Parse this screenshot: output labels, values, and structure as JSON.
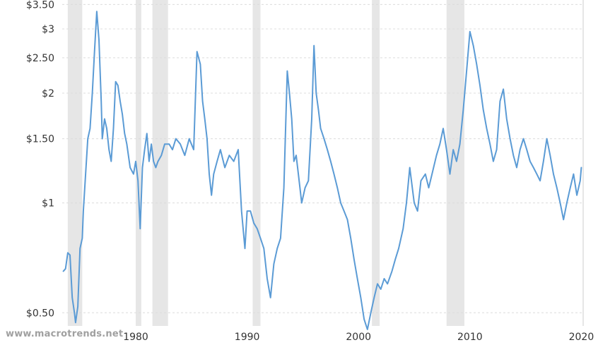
{
  "watermark": "www.macrotrends.net",
  "colors": {
    "line": "#5b9bd5",
    "grid": "#dcdcdc",
    "recession": "#e6e6e6",
    "text": "#333333"
  },
  "chart_data": {
    "type": "line",
    "title": "",
    "xlabel": "",
    "ylabel": "",
    "yscale": "log",
    "ylim": [
      0.46,
      3.6
    ],
    "xlim": [
      1973.4,
      2020.1
    ],
    "grid": true,
    "y_ticks": [
      {
        "value": 3.5,
        "label": "$3.50"
      },
      {
        "value": 3.0,
        "label": "$3"
      },
      {
        "value": 2.5,
        "label": "$2.50"
      },
      {
        "value": 2.0,
        "label": "$2"
      },
      {
        "value": 1.5,
        "label": "$1.50"
      },
      {
        "value": 1.0,
        "label": "$1"
      },
      {
        "value": 0.5,
        "label": "$0.50"
      }
    ],
    "x_ticks": [
      {
        "value": 1980,
        "label": "1980"
      },
      {
        "value": 1990,
        "label": "1990"
      },
      {
        "value": 2000,
        "label": "2000"
      },
      {
        "value": 2010,
        "label": "2010"
      },
      {
        "value": 2020,
        "label": "2020"
      }
    ],
    "recessions": [
      [
        1973.9,
        1975.2
      ],
      [
        1980.0,
        1980.5
      ],
      [
        1981.5,
        1982.9
      ],
      [
        1990.5,
        1991.2
      ],
      [
        2001.2,
        2001.9
      ],
      [
        2007.9,
        2009.5
      ],
      [
        2020.1,
        2020.4
      ]
    ],
    "series": [
      {
        "x": [
          1973.5,
          1973.7,
          1973.9,
          1974.1,
          1974.3,
          1974.5,
          1974.6,
          1974.8,
          1975.0,
          1975.2,
          1975.3,
          1975.5,
          1975.7,
          1975.9,
          1976.1,
          1976.3,
          1976.5,
          1976.7,
          1976.9,
          1977.0,
          1977.2,
          1977.4,
          1977.6,
          1977.8,
          1978.0,
          1978.2,
          1978.4,
          1978.6,
          1978.8,
          1979.0,
          1979.2,
          1979.5,
          1979.8,
          1980.0,
          1980.2,
          1980.4,
          1980.6,
          1980.8,
          1981.0,
          1981.2,
          1981.4,
          1981.6,
          1981.8,
          1982.0,
          1982.3,
          1982.6,
          1983.0,
          1983.3,
          1983.6,
          1984.0,
          1984.4,
          1984.8,
          1985.2,
          1985.5,
          1985.8,
          1986.0,
          1986.2,
          1986.4,
          1986.6,
          1986.8,
          1987.0,
          1987.3,
          1987.6,
          1988.0,
          1988.4,
          1988.8,
          1989.2,
          1989.5,
          1989.8,
          1990.0,
          1990.3,
          1990.6,
          1990.9,
          1991.2,
          1991.5,
          1991.8,
          1992.1,
          1992.4,
          1992.7,
          1993.0,
          1993.3,
          1993.6,
          1993.8,
          1994.0,
          1994.2,
          1994.4,
          1994.6,
          1994.9,
          1995.2,
          1995.5,
          1995.8,
          1996.0,
          1996.2,
          1996.4,
          1996.6,
          1996.9,
          1997.2,
          1997.5,
          1997.8,
          1998.1,
          1998.4,
          1998.7,
          1999.0,
          1999.3,
          1999.6,
          1999.9,
          2000.2,
          2000.5,
          2000.8,
          2001.1,
          2001.4,
          2001.7,
          2002.0,
          2002.3,
          2002.6,
          2003.0,
          2003.3,
          2003.6,
          2004.0,
          2004.3,
          2004.6,
          2005.0,
          2005.3,
          2005.6,
          2006.0,
          2006.3,
          2006.6,
          2007.0,
          2007.3,
          2007.6,
          2007.9,
          2008.2,
          2008.5,
          2008.8,
          2009.1,
          2009.4,
          2009.7,
          2010.0,
          2010.3,
          2010.6,
          2010.9,
          2011.2,
          2011.5,
          2011.8,
          2012.1,
          2012.4,
          2012.7,
          2013.0,
          2013.3,
          2013.6,
          2013.9,
          2014.2,
          2014.5,
          2014.8,
          2015.1,
          2015.4,
          2015.7,
          2016.0,
          2016.3,
          2016.6,
          2016.9,
          2017.2,
          2017.5,
          2017.8,
          2018.1,
          2018.4,
          2018.7,
          2019.0,
          2019.3,
          2019.6,
          2019.9,
          2020.0
        ],
        "values": [
          0.65,
          0.66,
          0.73,
          0.72,
          0.55,
          0.5,
          0.47,
          0.52,
          0.75,
          0.8,
          0.95,
          1.2,
          1.5,
          1.6,
          2.0,
          2.6,
          3.35,
          2.8,
          1.9,
          1.5,
          1.7,
          1.6,
          1.4,
          1.3,
          1.6,
          2.15,
          2.1,
          1.9,
          1.75,
          1.55,
          1.45,
          1.25,
          1.2,
          1.3,
          1.15,
          0.85,
          1.25,
          1.4,
          1.55,
          1.3,
          1.45,
          1.3,
          1.25,
          1.3,
          1.35,
          1.45,
          1.45,
          1.4,
          1.5,
          1.45,
          1.35,
          1.5,
          1.4,
          2.6,
          2.4,
          1.9,
          1.7,
          1.5,
          1.2,
          1.05,
          1.2,
          1.3,
          1.4,
          1.25,
          1.35,
          1.3,
          1.4,
          0.95,
          0.75,
          0.95,
          0.95,
          0.88,
          0.85,
          0.8,
          0.75,
          0.62,
          0.55,
          0.68,
          0.75,
          0.8,
          1.1,
          2.3,
          2.0,
          1.7,
          1.3,
          1.35,
          1.2,
          1.0,
          1.1,
          1.15,
          1.7,
          2.7,
          2.0,
          1.8,
          1.6,
          1.5,
          1.4,
          1.3,
          1.2,
          1.1,
          1.0,
          0.95,
          0.9,
          0.8,
          0.7,
          0.62,
          0.55,
          0.48,
          0.45,
          0.5,
          0.55,
          0.6,
          0.58,
          0.62,
          0.6,
          0.65,
          0.7,
          0.75,
          0.85,
          1.0,
          1.25,
          1.0,
          0.95,
          1.15,
          1.2,
          1.1,
          1.2,
          1.35,
          1.45,
          1.6,
          1.4,
          1.2,
          1.4,
          1.3,
          1.45,
          1.8,
          2.3,
          2.95,
          2.7,
          2.4,
          2.1,
          1.8,
          1.6,
          1.45,
          1.3,
          1.4,
          1.9,
          2.05,
          1.7,
          1.5,
          1.35,
          1.25,
          1.4,
          1.5,
          1.4,
          1.3,
          1.25,
          1.2,
          1.15,
          1.3,
          1.5,
          1.35,
          1.2,
          1.1,
          1.0,
          0.9,
          1.0,
          1.1,
          1.2,
          1.05,
          1.15,
          1.25
        ]
      }
    ]
  }
}
